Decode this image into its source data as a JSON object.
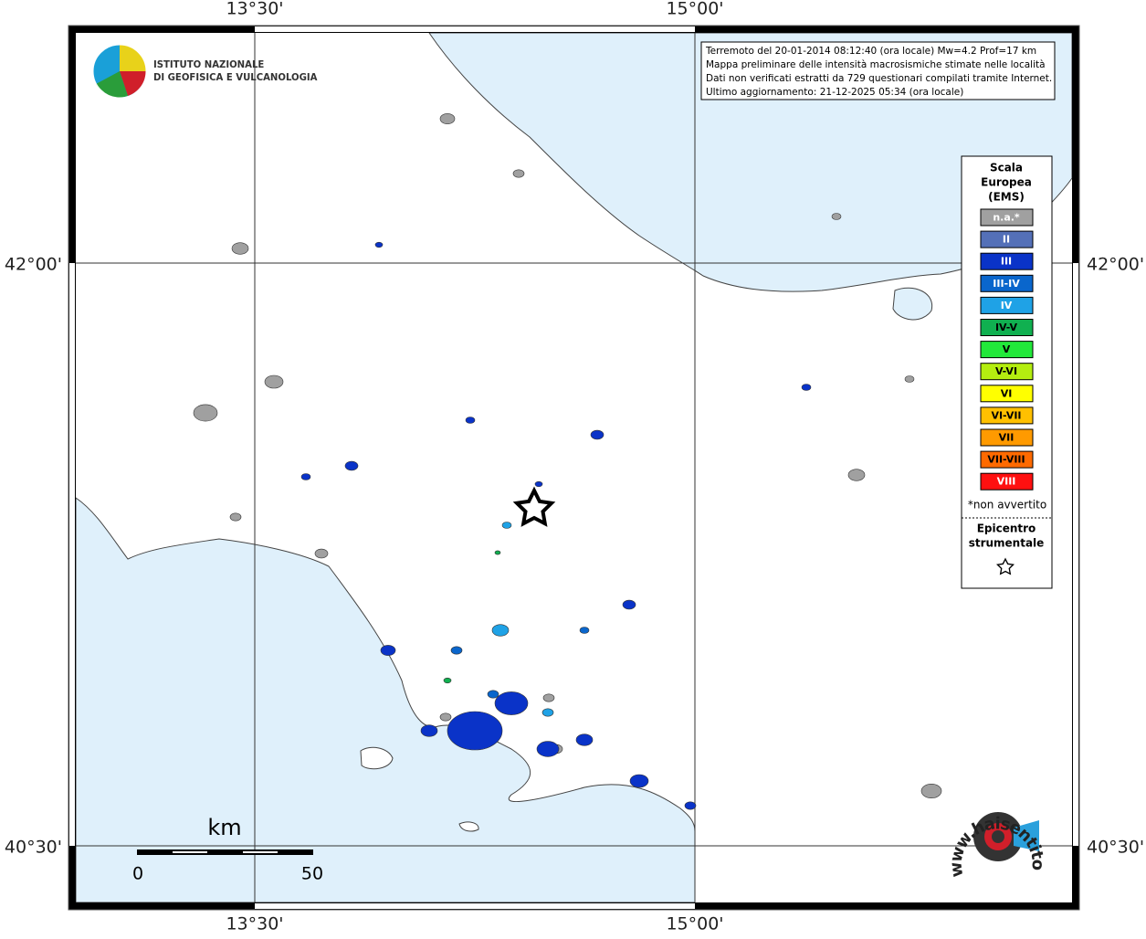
{
  "map": {
    "grid_labels": {
      "top": [
        "13°30'",
        "15°00'"
      ],
      "bottom": [
        "13°30'",
        "15°00'"
      ],
      "left": [
        "42°00'",
        "40°30'"
      ],
      "right": [
        "42°00'",
        "40°30'"
      ]
    },
    "logo": {
      "line1": "ISTITUTO NAZIONALE",
      "line2": "DI GEOFISICA E VULCANOLOGIA"
    },
    "info": [
      "Terremoto del 20-01-2014 08:12:40 (ora locale) Mw=4.2 Prof=17 km",
      "Mappa preliminare delle intensità macrosismiche stimate nelle località",
      "Dati non verificati estratti da 729 questionari compilati tramite Internet.",
      "Ultimo aggiornamento: 21-12-2025 05:34 (ora locale)"
    ],
    "legend": {
      "title": [
        "Scala",
        "Europea",
        "(EMS)"
      ],
      "items": [
        {
          "label": "n.a.*",
          "color": "#a0a0a0",
          "text_color": "#ffffff"
        },
        {
          "label": "II",
          "color": "#5470b8",
          "text_color": "#ffffff"
        },
        {
          "label": "III",
          "color": "#0a33c8",
          "text_color": "#ffffff"
        },
        {
          "label": "III-IV",
          "color": "#0a66cc",
          "text_color": "#ffffff"
        },
        {
          "label": "IV",
          "color": "#1fa2e6",
          "text_color": "#ffffff"
        },
        {
          "label": "IV-V",
          "color": "#10b050",
          "text_color": "#000000"
        },
        {
          "label": "V",
          "color": "#22e83a",
          "text_color": "#000000"
        },
        {
          "label": "V-VI",
          "color": "#b4ee10",
          "text_color": "#000000"
        },
        {
          "label": "VI",
          "color": "#ffff00",
          "text_color": "#000000"
        },
        {
          "label": "VI-VII",
          "color": "#ffc000",
          "text_color": "#000000"
        },
        {
          "label": "VII",
          "color": "#ff9a00",
          "text_color": "#000000"
        },
        {
          "label": "VII-VIII",
          "color": "#ff6a00",
          "text_color": "#000000"
        },
        {
          "label": "VIII",
          "color": "#ff1010",
          "text_color": "#ffffff"
        }
      ],
      "note": "*non avvertito",
      "epicenter": [
        "Epicentro",
        "strumentale"
      ]
    },
    "scale": {
      "unit": "km",
      "min": "0",
      "max": "50"
    },
    "badge": "www.haisentitoilterremoto.it"
  }
}
